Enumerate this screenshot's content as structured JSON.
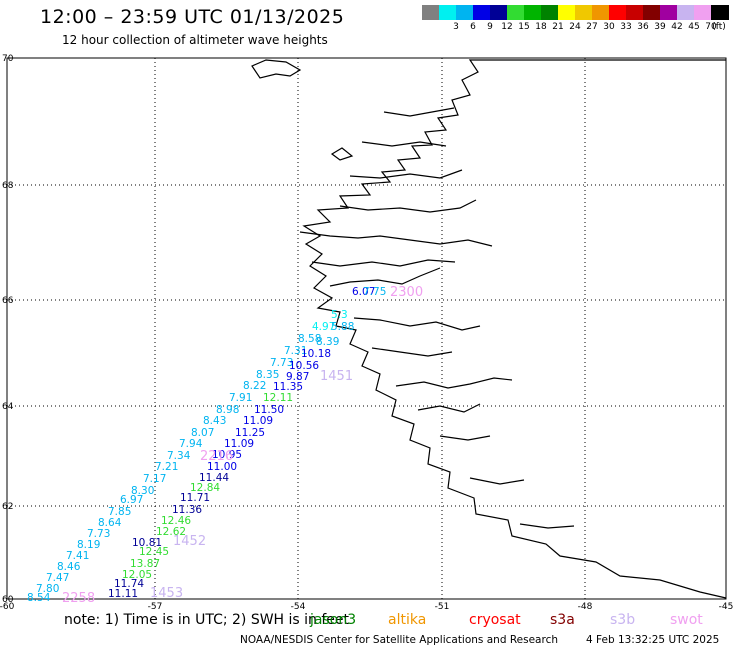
{
  "header": {
    "title": "12:00 – 23:59 UTC 01/13/2025",
    "subtitle": "12 hour collection of altimeter wave heights"
  },
  "color_scale": {
    "unit": "(ft)",
    "swatches": [
      {
        "color": "#808080",
        "label": ""
      },
      {
        "color": "#00f0f0",
        "label": "3"
      },
      {
        "color": "#00b4f0",
        "label": "6"
      },
      {
        "color": "#0000e6",
        "label": "9"
      },
      {
        "color": "#000096",
        "label": "12"
      },
      {
        "color": "#32dc32",
        "label": "15"
      },
      {
        "color": "#00b400",
        "label": "18"
      },
      {
        "color": "#008200",
        "label": "21"
      },
      {
        "color": "#ffff00",
        "label": "24"
      },
      {
        "color": "#f0c800",
        "label": "27"
      },
      {
        "color": "#f09600",
        "label": "30"
      },
      {
        "color": "#ff0000",
        "label": "33"
      },
      {
        "color": "#c80000",
        "label": "36"
      },
      {
        "color": "#820000",
        "label": "39"
      },
      {
        "color": "#a000a0",
        "label": "42"
      },
      {
        "color": "#c8b4f0",
        "label": "45"
      },
      {
        "color": "#f0a0f0",
        "label": "70"
      },
      {
        "color": "#000000",
        "label": ""
      }
    ]
  },
  "axes": {
    "lat_labels": [
      "70",
      "68",
      "66",
      "64",
      "62",
      "60"
    ],
    "lon_labels": [
      "-60",
      "-57",
      "-54",
      "-51",
      "-48",
      "-45"
    ]
  },
  "wave_heights": [
    {
      "value": "6.07",
      "color": "#0000e6"
    },
    {
      "value": "7.75",
      "color": "#00b4f0"
    },
    {
      "value": "5.3",
      "color": "#00f0f0"
    },
    {
      "value": "4.97",
      "color": "#00f0f0"
    },
    {
      "value": "5.88",
      "color": "#00b4f0"
    },
    {
      "value": "8.58",
      "color": "#00b4f0"
    },
    {
      "value": "8.39",
      "color": "#00b4f0"
    },
    {
      "value": "7.31",
      "color": "#00b4f0"
    },
    {
      "value": "10.18",
      "color": "#0000e6"
    },
    {
      "value": "7.73",
      "color": "#00b4f0"
    },
    {
      "value": "10.56",
      "color": "#0000e6"
    },
    {
      "value": "8.35",
      "color": "#00b4f0"
    },
    {
      "value": "9.87",
      "color": "#0000e6"
    },
    {
      "value": "8.22",
      "color": "#00b4f0"
    },
    {
      "value": "11.35",
      "color": "#0000e6"
    },
    {
      "value": "7.91",
      "color": "#00b4f0"
    },
    {
      "value": "12.11",
      "color": "#32dc32"
    },
    {
      "value": "8.98",
      "color": "#00b4f0"
    },
    {
      "value": "11.50",
      "color": "#0000e6"
    },
    {
      "value": "8.43",
      "color": "#00b4f0"
    },
    {
      "value": "11.09",
      "color": "#0000e6"
    },
    {
      "value": "8.07",
      "color": "#00b4f0"
    },
    {
      "value": "11.25",
      "color": "#0000e6"
    },
    {
      "value": "7.94",
      "color": "#00b4f0"
    },
    {
      "value": "11.09",
      "color": "#0000e6"
    },
    {
      "value": "7.34",
      "color": "#00b4f0"
    },
    {
      "value": "10.95",
      "color": "#0000e6"
    },
    {
      "value": "7.21",
      "color": "#00b4f0"
    },
    {
      "value": "11.00",
      "color": "#0000e6"
    },
    {
      "value": "7.17",
      "color": "#00b4f0"
    },
    {
      "value": "11.44",
      "color": "#000096"
    },
    {
      "value": "8.30",
      "color": "#00b4f0"
    },
    {
      "value": "12.84",
      "color": "#32dc32"
    },
    {
      "value": "6.97",
      "color": "#00b4f0"
    },
    {
      "value": "11.71",
      "color": "#000096"
    },
    {
      "value": "7.85",
      "color": "#00b4f0"
    },
    {
      "value": "11.36",
      "color": "#000096"
    },
    {
      "value": "8.64",
      "color": "#00b4f0"
    },
    {
      "value": "12.46",
      "color": "#32dc32"
    },
    {
      "value": "7.73",
      "color": "#00b4f0"
    },
    {
      "value": "12.62",
      "color": "#32dc32"
    },
    {
      "value": "8.19",
      "color": "#00b4f0"
    },
    {
      "value": "10.81",
      "color": "#000096"
    },
    {
      "value": "7.41",
      "color": "#00b4f0"
    },
    {
      "value": "12.45",
      "color": "#32dc32"
    },
    {
      "value": "8.46",
      "color": "#00b4f0"
    },
    {
      "value": "13.87",
      "color": "#32dc32"
    },
    {
      "value": "7.47",
      "color": "#00b4f0"
    },
    {
      "value": "12.05",
      "color": "#32dc32"
    },
    {
      "value": "7.80",
      "color": "#00b4f0"
    },
    {
      "value": "11.74",
      "color": "#000096"
    },
    {
      "value": "8.54",
      "color": "#00b4f0"
    },
    {
      "value": "11.11",
      "color": "#000096"
    }
  ],
  "pass_times": [
    {
      "time": "2300",
      "color": "#f0a0f0"
    },
    {
      "time": "1451",
      "color": "#c8b4f0"
    },
    {
      "time": "2216",
      "color": "#f0a0f0"
    },
    {
      "time": "1452",
      "color": "#c8b4f0"
    },
    {
      "time": "2258",
      "color": "#f0a0f0"
    },
    {
      "time": "1453",
      "color": "#c8b4f0"
    }
  ],
  "footer": {
    "note": "note:  1) Time is in UTC;  2) SWH is in feet",
    "satellites": [
      {
        "name": "jason3",
        "color": "#008200"
      },
      {
        "name": "altika",
        "color": "#f09600"
      },
      {
        "name": "cryosat",
        "color": "#ff0000"
      },
      {
        "name": "s3a",
        "color": "#820000"
      },
      {
        "name": "s3b",
        "color": "#c8b4f0"
      },
      {
        "name": "swot",
        "color": "#f0a0f0"
      }
    ],
    "credit": "NOAA/NESDIS Center for Satellite Applications and Research",
    "timestamp": "4 Feb 13:32:25 UTC 2025"
  }
}
